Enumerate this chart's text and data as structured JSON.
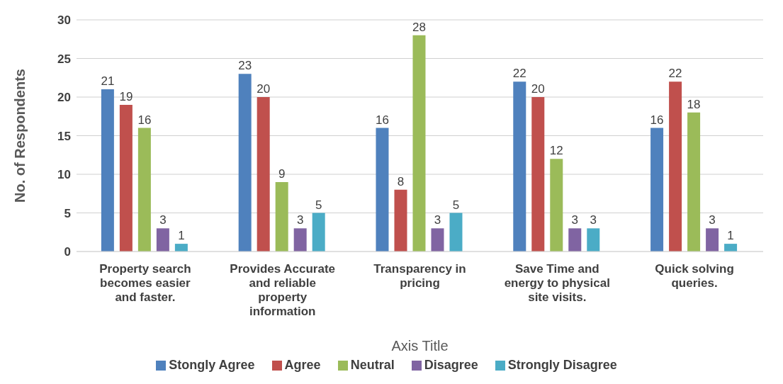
{
  "chart_data": {
    "type": "bar",
    "xlabel": "Axis Title",
    "ylabel": "No. of Respondents",
    "categories": [
      "Property search becomes easier and faster.",
      "Provides Accurate and reliable property information",
      "Transparency in pricing",
      "Save Time and energy to physical site visits.",
      "Quick solving queries."
    ],
    "series": [
      {
        "name": "Stongly Agree",
        "color": "#4f81bd",
        "values": [
          21,
          23,
          16,
          22,
          16
        ]
      },
      {
        "name": "Agree",
        "color": "#c0504d",
        "values": [
          19,
          20,
          8,
          20,
          22
        ]
      },
      {
        "name": "Neutral",
        "color": "#9bbb59",
        "values": [
          16,
          9,
          28,
          12,
          18
        ]
      },
      {
        "name": "Disagree",
        "color": "#8064a2",
        "values": [
          3,
          3,
          3,
          3,
          3
        ]
      },
      {
        "name": "Strongly Disagree",
        "color": "#4bacc6",
        "values": [
          1,
          5,
          5,
          3,
          1
        ]
      }
    ],
    "ylim": [
      0,
      30
    ],
    "yticks": [
      0,
      5,
      10,
      15,
      20,
      25,
      30
    ],
    "grid": "y",
    "legend": "bottom",
    "data_labels": true
  }
}
